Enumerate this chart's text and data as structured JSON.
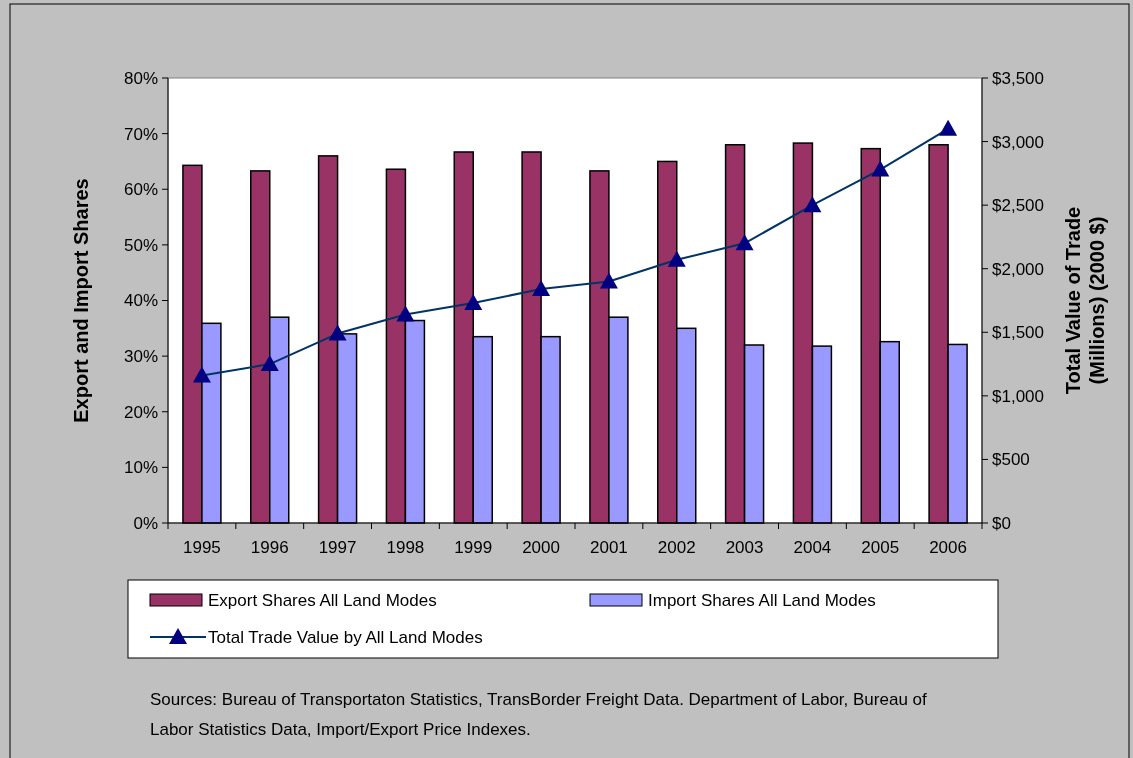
{
  "chart_data": {
    "type": "bar",
    "categories": [
      "1995",
      "1996",
      "1997",
      "1998",
      "1999",
      "2000",
      "2001",
      "2002",
      "2003",
      "2004",
      "2005",
      "2006"
    ],
    "series": [
      {
        "name": "Export Shares All Land Modes",
        "color": "#993366",
        "values": [
          64.3,
          63.3,
          66.0,
          63.6,
          66.7,
          66.7,
          63.3,
          65.0,
          68.0,
          68.3,
          67.3,
          68.0
        ]
      },
      {
        "name": "Import Shares All Land Modes",
        "color": "#9999ff",
        "values": [
          35.9,
          37.0,
          34.0,
          36.4,
          33.5,
          33.5,
          37.0,
          35.0,
          32.0,
          31.8,
          32.6,
          32.1
        ]
      },
      {
        "name": "Total Trade Value by All Land Modes",
        "type": "line",
        "axis": "y2",
        "color": "#000080",
        "marker": "triangle",
        "values": [
          1160,
          1250,
          1490,
          1640,
          1730,
          1840,
          1900,
          2070,
          2200,
          2500,
          2780,
          3100
        ]
      }
    ],
    "ylabel": "Export and Import Shares",
    "y2label": "Total Value of Trade (Millions) (2000 $)",
    "ylim": [
      0,
      80
    ],
    "yticks": [
      {
        "value": 0,
        "label": "0%"
      },
      {
        "value": 10,
        "label": "10%"
      },
      {
        "value": 20,
        "label": "20%"
      },
      {
        "value": 30,
        "label": "30%"
      },
      {
        "value": 40,
        "label": "40%"
      },
      {
        "value": 50,
        "label": "50%"
      },
      {
        "value": 60,
        "label": "60%"
      },
      {
        "value": 70,
        "label": "70%"
      },
      {
        "value": 80,
        "label": "80%"
      }
    ],
    "y2lim": [
      0,
      3500
    ],
    "y2ticks": [
      {
        "value": 0,
        "label": "$0"
      },
      {
        "value": 500,
        "label": "$500"
      },
      {
        "value": 1000,
        "label": "$1,000"
      },
      {
        "value": 1500,
        "label": "$1,500"
      },
      {
        "value": 2000,
        "label": "$2,000"
      },
      {
        "value": 2500,
        "label": "$2,500"
      },
      {
        "value": 3000,
        "label": "$3,000"
      },
      {
        "value": 3500,
        "label": "$3,500"
      }
    ],
    "legend": "bottom",
    "annotations": [
      "Sources: Bureau of Transportaton Statistics, TransBorder Freight Data. Department of Labor, Bureau of Labor Statistics Data, Import/Export Price Indexes."
    ]
  }
}
